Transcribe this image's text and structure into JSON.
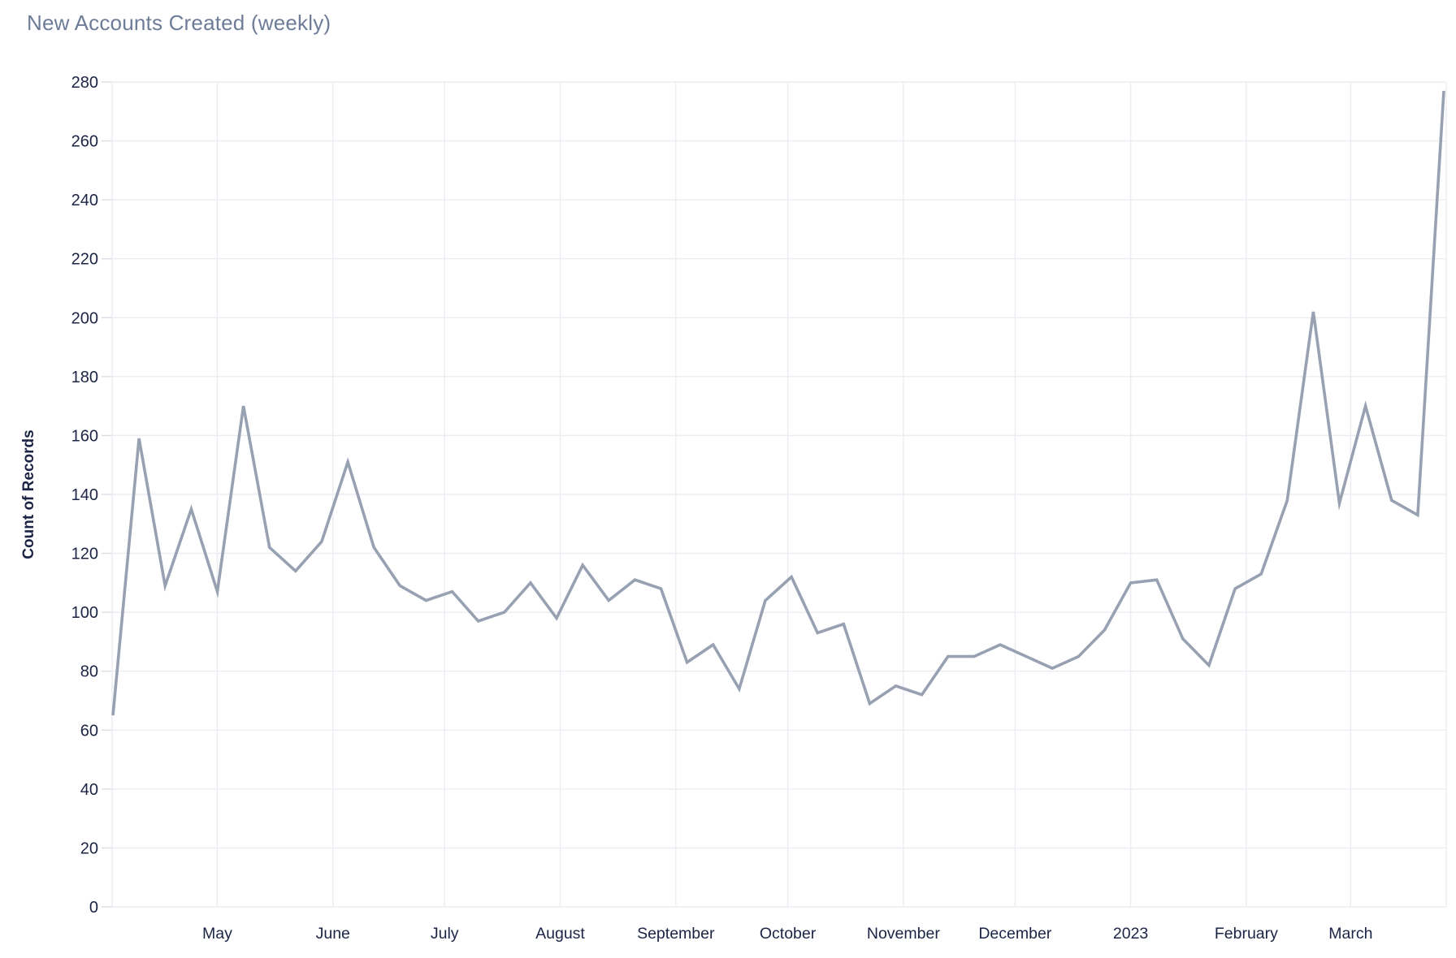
{
  "header": {
    "title": "New Accounts Created (weekly)"
  },
  "chart_data": {
    "type": "line",
    "title": "New Accounts Created (weekly)",
    "xlabel": "",
    "ylabel": "Count of Records",
    "ylim": [
      0,
      280
    ],
    "ytick_step": 20,
    "grid": true,
    "legend": "none",
    "x_unit": "week",
    "x_range_note": "52 weekly points, April 2022 through March 2023",
    "month_ticks": [
      {
        "label": "May",
        "week": 4.0
      },
      {
        "label": "June",
        "week": 8.43
      },
      {
        "label": "July",
        "week": 12.71
      },
      {
        "label": "August",
        "week": 17.14
      },
      {
        "label": "September",
        "week": 21.57
      },
      {
        "label": "October",
        "week": 25.86
      },
      {
        "label": "November",
        "week": 30.29
      },
      {
        "label": "December",
        "week": 34.57
      },
      {
        "label": "2023",
        "week": 39.0
      },
      {
        "label": "February",
        "week": 43.43
      },
      {
        "label": "March",
        "week": 47.43
      }
    ],
    "series": [
      {
        "name": "Count of Records",
        "values": [
          65,
          159,
          109,
          135,
          107,
          170,
          122,
          114,
          124,
          151,
          122,
          109,
          104,
          107,
          97,
          100,
          110,
          98,
          116,
          104,
          111,
          108,
          83,
          89,
          74,
          104,
          112,
          93,
          96,
          69,
          75,
          72,
          85,
          85,
          89,
          85,
          81,
          85,
          94,
          110,
          111,
          91,
          82,
          108,
          113,
          138,
          202,
          137,
          170,
          138,
          133,
          277
        ]
      }
    ],
    "colors": {
      "line": "#98a1b2",
      "grid": "#ececf2",
      "tick_mark": "#dcdce4",
      "axis_text": "#1b2444",
      "title_text": "#6e7c98",
      "background": "#ffffff"
    }
  }
}
